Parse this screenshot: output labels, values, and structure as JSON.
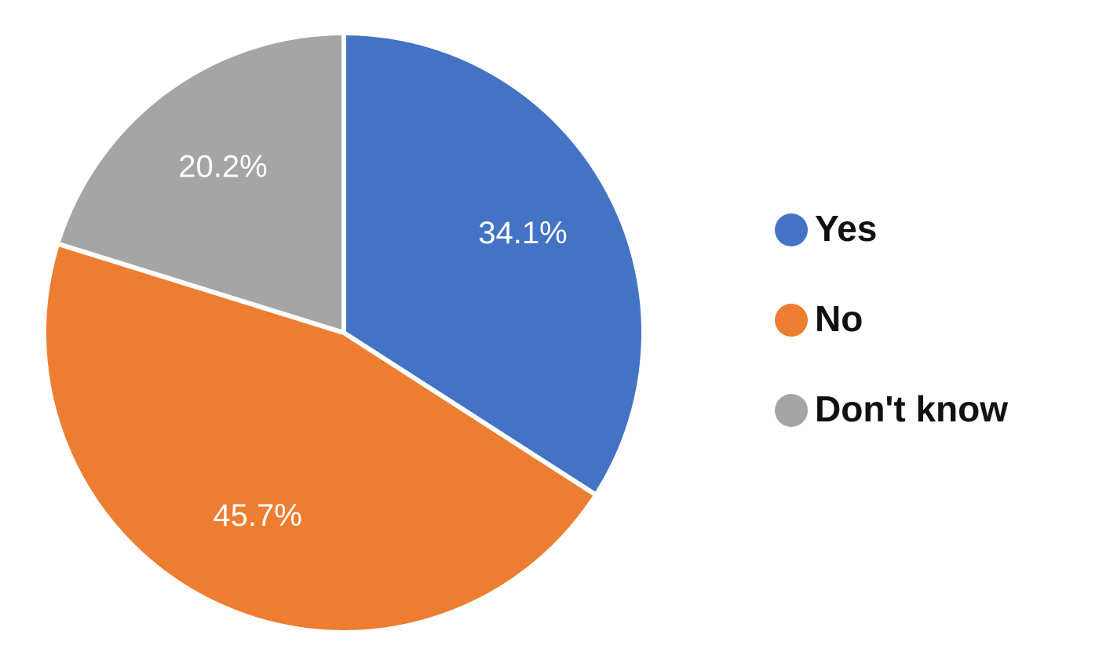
{
  "chart_data": {
    "type": "pie",
    "categories": [
      "Yes",
      "No",
      "Don't know"
    ],
    "values": [
      34.1,
      45.7,
      20.2
    ],
    "value_labels": [
      "34.1%",
      "45.7%",
      "20.2%"
    ],
    "colors": [
      "#4472c4",
      "#ed7d31",
      "#a5a5a5"
    ],
    "legend": "right"
  }
}
